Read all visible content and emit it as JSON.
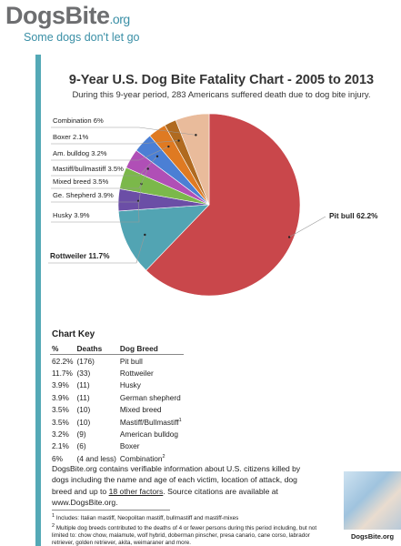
{
  "header": {
    "logo": "DogsBite",
    "logo_suffix": ".org",
    "tagline": "Some dogs don't let go"
  },
  "chart_data": {
    "type": "pie",
    "title": "9-Year U.S. Dog Bite Fatality Chart - 2005 to 2013",
    "subtitle": "During this 9-year period, 283 Americans suffered death due to dog bite injury.",
    "categories": [
      "Pit bull",
      "Rottweiler",
      "Husky",
      "Ge. Shepherd",
      "Mixed breed",
      "Mastiff/bullmastiff",
      "Am. bulldog",
      "Boxer",
      "Combination"
    ],
    "values": [
      62.2,
      11.7,
      3.9,
      3.9,
      3.5,
      3.5,
      3.2,
      2.1,
      6
    ],
    "value_labels": [
      "62.2%",
      "11.7%",
      "3.9%",
      "3.9%",
      "3.5%",
      "3.5%",
      "3.2%",
      "2.1%",
      "6%"
    ],
    "colors": [
      "#c9474b",
      "#52a4b3",
      "#6b4ea6",
      "#7bb84a",
      "#b04fb6",
      "#4b7fd4",
      "#df7a22",
      "#b06a20",
      "#e9bb9b"
    ]
  },
  "key": {
    "title": "Chart Key",
    "headers": [
      "%",
      "Deaths",
      "Dog Breed"
    ],
    "rows": [
      {
        "percent": "62.2%",
        "deaths": "(176)",
        "breed": "Pit bull"
      },
      {
        "percent": "11.7%",
        "deaths": "(33)",
        "breed": "Rottweiler"
      },
      {
        "percent": "3.9%",
        "deaths": "(11)",
        "breed": "Husky"
      },
      {
        "percent": "3.9%",
        "deaths": "(11)",
        "breed": "German shepherd"
      },
      {
        "percent": "3.5%",
        "deaths": "(10)",
        "breed": "Mixed breed"
      },
      {
        "percent": "3.5%",
        "deaths": "(10)",
        "breed": "Mastiff/Bullmastiff",
        "ref": "1"
      },
      {
        "percent": "3.2%",
        "deaths": "(9)",
        "breed": "American bulldog"
      },
      {
        "percent": "2.1%",
        "deaths": "(6)",
        "breed": "Boxer"
      },
      {
        "percent": "6%",
        "deaths": "(4 and less)",
        "breed": "Combination",
        "ref": "2"
      }
    ]
  },
  "paragraph": {
    "before": "DogsBite.org contains verifiable information about U.S. citizens killed by dogs including the name and age of each victim, location of attack, dog breed and up to ",
    "link": "18 other factors",
    "after": ". Source citations are available at www.DogsBite.org."
  },
  "footnotes": [
    {
      "mark": "1",
      "text": "Includes: Italian mastiff, Neopolitan mastiff, bullmastiff and mastiff-mixes"
    },
    {
      "mark": "2",
      "text": "Multiple dog breeds contributed to the deaths of 4 or fewer persons during this period including, but not limited to: chow chow, malamute, wolf hybrid, doberman pinscher, presa canario, cane corso, labrador retriever, golden retriever, akita, weimaraner and more."
    }
  ],
  "photo_caption": "DogsBite.org"
}
